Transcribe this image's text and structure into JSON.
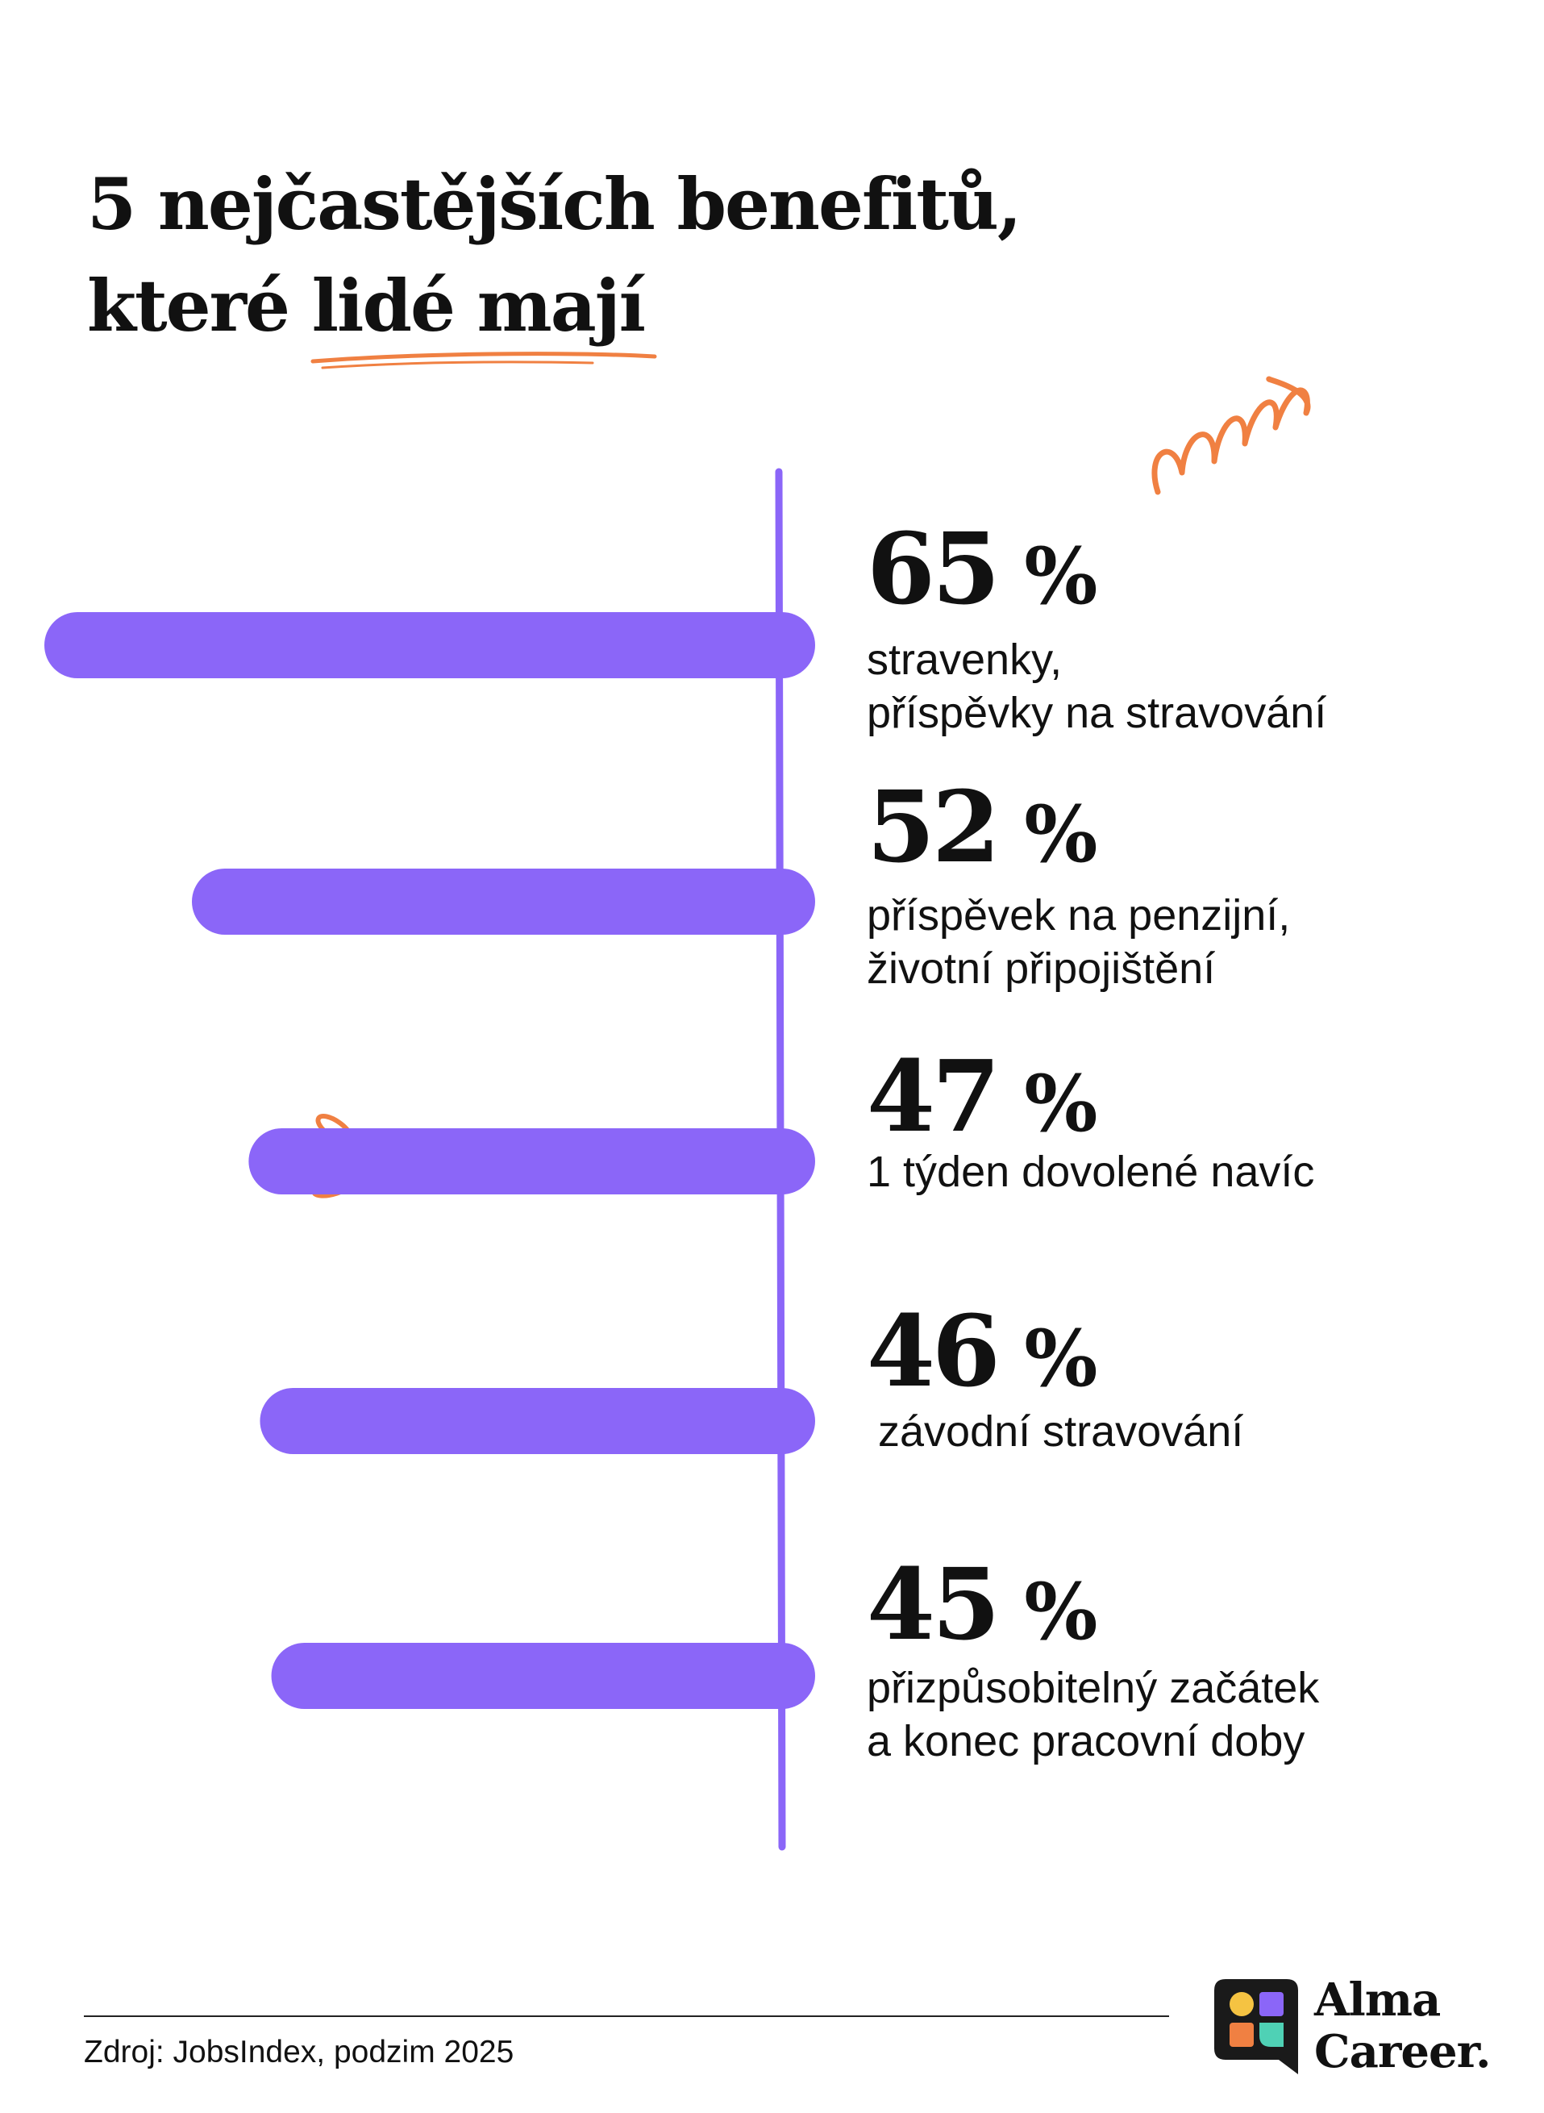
{
  "title": {
    "line1": "5 nejčastějších benefitů,",
    "line2": "které lidé mají"
  },
  "colors": {
    "bar": "#8B66F8",
    "axis": "#8B66F8",
    "accent": "#F08042",
    "text": "#111111"
  },
  "chart_data": {
    "type": "bar",
    "orientation": "horizontal",
    "categories": [
      "stravenky,\npříspěvky na stravování",
      "příspěvek na penzijní,\nživotní připojištění",
      "1 týden dovolené navíc",
      "závodní stravování",
      "přizpůsobitelný začátek\na konec pracovní doby"
    ],
    "values": [
      65,
      52,
      47,
      46,
      45
    ],
    "value_labels": [
      "65",
      "52",
      "47",
      "46",
      "45"
    ],
    "unit": "%",
    "title": "5 nejčastějších benefitů, které lidé mají",
    "xlim": [
      0,
      65
    ],
    "grid": false,
    "legend": "none"
  },
  "footer": {
    "source": "Zdroj: JobsIndex, podzim 2025"
  },
  "logo": {
    "line1": "Alma",
    "line2": "Career.",
    "icon": "alma-career-logo-icon"
  }
}
